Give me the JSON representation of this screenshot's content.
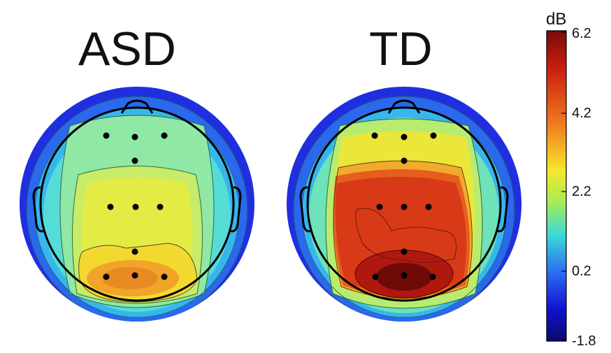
{
  "panels": [
    {
      "id": "asd",
      "title": "ASD"
    },
    {
      "id": "td",
      "title": "TD"
    }
  ],
  "colorbar": {
    "unit": "dB",
    "ticks": [
      "6.2",
      "4.2",
      "2.2",
      "0.2",
      "-1.8"
    ],
    "stops": [
      "#7a0a0a",
      "#c81e10",
      "#f07a20",
      "#f5e82a",
      "#a8ec56",
      "#3ad8d8",
      "#2b6cf0",
      "#1010d0",
      "#0a0a6a"
    ]
  }
}
